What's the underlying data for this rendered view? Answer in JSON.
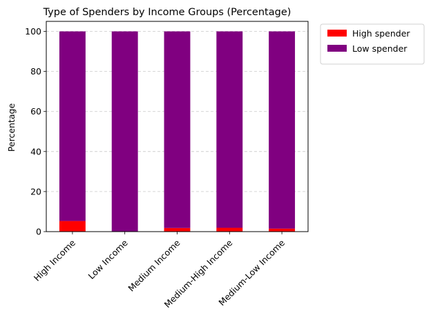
{
  "chart_data": {
    "type": "bar",
    "stacked": true,
    "title": "Type of Spenders by Income Groups (Percentage)",
    "xlabel": "",
    "ylabel": "Percentage",
    "ylim": [
      0,
      105
    ],
    "yticks": [
      "0",
      "20",
      "40",
      "60",
      "80",
      "100"
    ],
    "grid": "horizontal dashed",
    "legend_position": "outside top-right",
    "categories": [
      "High Income",
      "Low Income",
      "Medium Income",
      "Medium-High Income",
      "Medium-Low Income"
    ],
    "series": [
      {
        "name": "High spender",
        "color": "#ff0000",
        "values": [
          5.3,
          0.0,
          1.8,
          1.9,
          1.5
        ]
      },
      {
        "name": "Low spender",
        "color": "#800080",
        "values": [
          94.7,
          100.0,
          98.2,
          98.1,
          98.5
        ]
      }
    ]
  }
}
